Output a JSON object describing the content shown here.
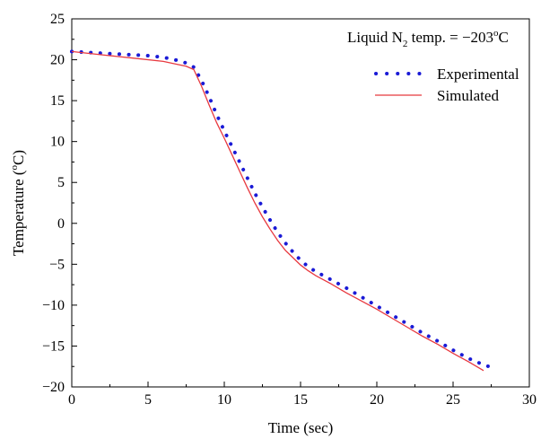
{
  "chart_data": {
    "type": "line",
    "xlabel": "Time (sec)",
    "ylabel": {
      "main": "Temperature (",
      "sup": "o",
      "end": "C)"
    },
    "xlim": [
      0,
      30
    ],
    "ylim": [
      -20,
      25
    ],
    "x_ticks": [
      0,
      5,
      10,
      15,
      20,
      25,
      30
    ],
    "y_ticks": [
      -20,
      -15,
      -10,
      -5,
      0,
      5,
      10,
      15,
      20,
      25
    ],
    "grid": false,
    "annotation": {
      "prefix": "Liquid N",
      "sub": "2",
      "mid": " temp. = −203",
      "sup": "o",
      "suffix": "C"
    },
    "legend_position": "top-right",
    "series": [
      {
        "name": "Experimental",
        "color": "#1a1ad6",
        "style": "dotted",
        "x": [
          0,
          1,
          2,
          3,
          4,
          5,
          6,
          7,
          7.5,
          8,
          8.5,
          9,
          9.5,
          10,
          10.5,
          11,
          11.5,
          12,
          12.5,
          13,
          13.5,
          14,
          14.5,
          15,
          15.5,
          16,
          17,
          18,
          19,
          20,
          21,
          22,
          23,
          24,
          25,
          26,
          27,
          27.5
        ],
        "y": [
          21,
          20.9,
          20.8,
          20.7,
          20.6,
          20.5,
          20.3,
          19.9,
          19.6,
          19.1,
          17.5,
          15.5,
          13.3,
          11.3,
          9.4,
          7.5,
          5.6,
          3.7,
          2,
          0.4,
          -1.1,
          -2.4,
          -3.5,
          -4.5,
          -5.3,
          -5.9,
          -6.9,
          -7.9,
          -9,
          -10.1,
          -11.2,
          -12.3,
          -13.4,
          -14.4,
          -15.5,
          -16.5,
          -17.3,
          -17.6
        ]
      },
      {
        "name": "Simulated",
        "color": "#e8393f",
        "style": "solid",
        "x": [
          0,
          2,
          4,
          6,
          7,
          7.5,
          8,
          8.5,
          9,
          9.5,
          10,
          10.5,
          11,
          11.5,
          12,
          12.5,
          13,
          13.5,
          14,
          14.5,
          15,
          15.5,
          16,
          17,
          18,
          19,
          20,
          21,
          22,
          23,
          24,
          25,
          26,
          27
        ],
        "y": [
          21,
          20.6,
          20.2,
          19.8,
          19.4,
          19.2,
          18.8,
          16.8,
          14.5,
          12.3,
          10.4,
          8.4,
          6.4,
          4.4,
          2.5,
          0.8,
          -0.7,
          -2.1,
          -3.3,
          -4.2,
          -5.1,
          -5.8,
          -6.4,
          -7.4,
          -8.5,
          -9.5,
          -10.5,
          -11.6,
          -12.7,
          -13.8,
          -14.8,
          -15.9,
          -16.9,
          -18
        ]
      }
    ]
  }
}
